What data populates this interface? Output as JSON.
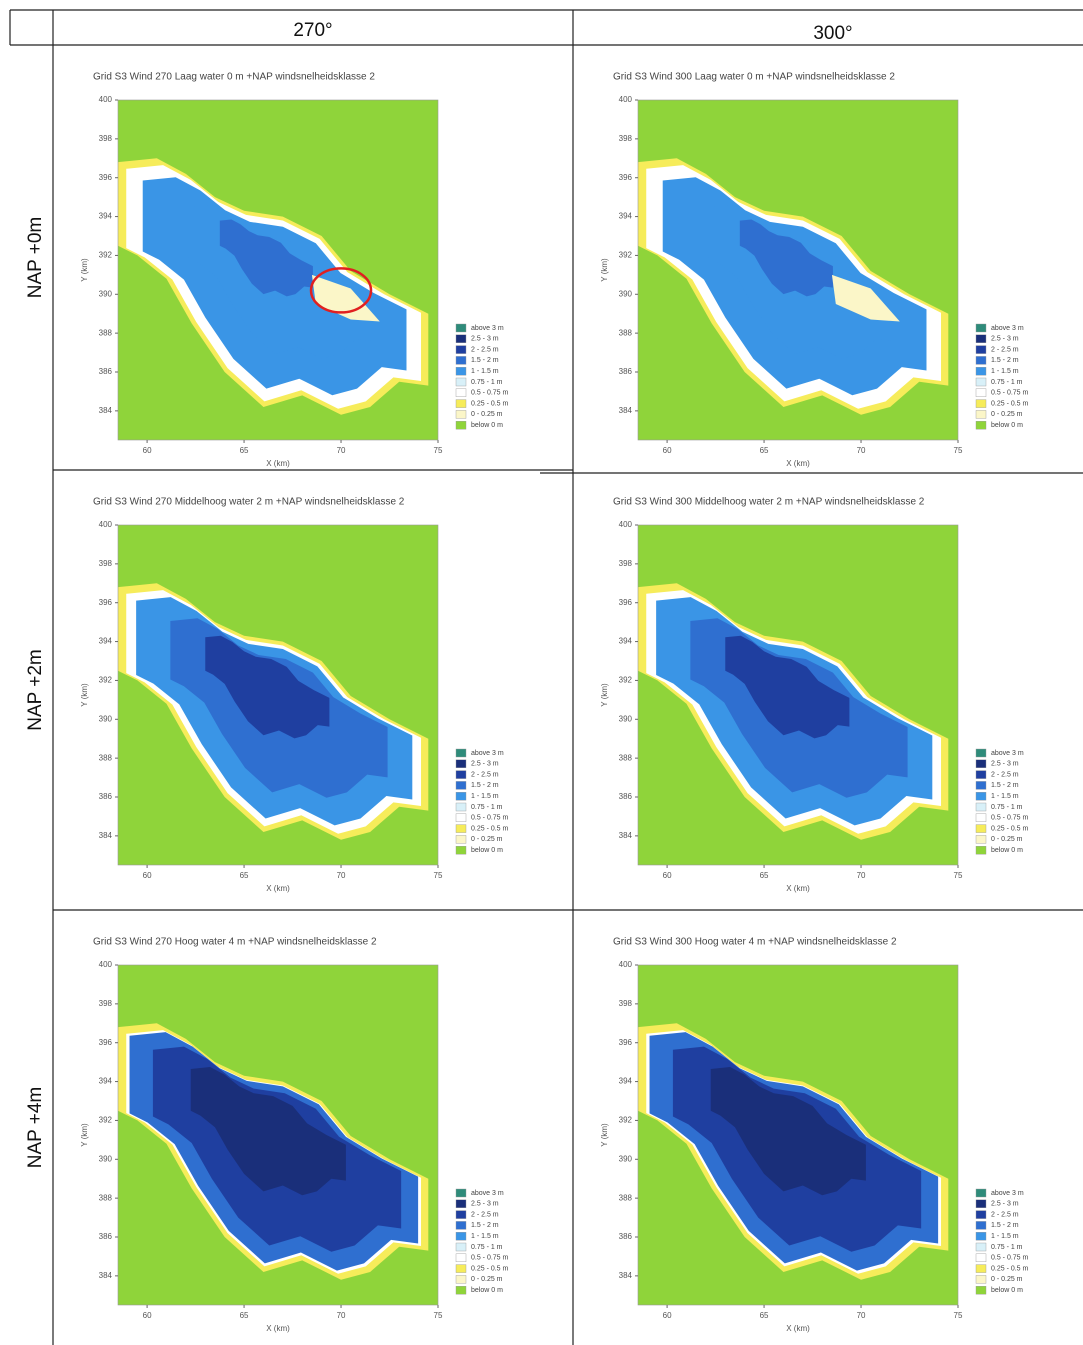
{
  "header": {
    "columns": [
      "270°",
      "300°"
    ]
  },
  "rows": [
    {
      "label": "NAP +0m",
      "panels": [
        {
          "title": "Grid  S3  Wind 270   Laag water  0 m +NAP windsnelheidsklasse 2"
        },
        {
          "title": "Grid  S3  Wind 300   Laag water  0 m +NAP windsnelheidsklasse 2"
        }
      ]
    },
    {
      "label": "NAP +2m",
      "panels": [
        {
          "title": "Grid  S3  Wind 270   Middelhoog water  2 m +NAP windsnelheidsklasse 2"
        },
        {
          "title": "Grid  S3  Wind 300   Middelhoog water  2 m +NAP windsnelheidsklasse 2"
        }
      ]
    },
    {
      "label": "NAP +4m",
      "panels": [
        {
          "title": "Grid  S3  Wind 270   Hoog water  4 m +NAP windsnelheidsklasse 2"
        },
        {
          "title": "Grid  S3  Wind 300   Hoog water  4 m +NAP windsnelheidsklasse 2"
        }
      ]
    }
  ],
  "axes": {
    "x_label": "X (km)",
    "y_label": "Y (km)",
    "xlim": [
      58.5,
      75
    ],
    "ylim": [
      382.5,
      400
    ],
    "xticks": [
      60,
      65,
      70,
      75
    ],
    "yticks": [
      400,
      398,
      396,
      394,
      392,
      390,
      388,
      386,
      384
    ]
  },
  "legend": [
    {
      "label": "above 3 m",
      "color": "#2e8b7a"
    },
    {
      "label": "2.5 - 3 m",
      "color": "#1a2f7a"
    },
    {
      "label": "2 - 2.5 m",
      "color": "#1f3fa0"
    },
    {
      "label": "1.5 - 2 m",
      "color": "#2f6fd0"
    },
    {
      "label": "1 - 1.5 m",
      "color": "#3a95e6"
    },
    {
      "label": "0.75 - 1 m",
      "color": "#d8f0f8"
    },
    {
      "label": "0.5 - 0.75 m",
      "color": "#ffffff"
    },
    {
      "label": "0.25 - 0.5 m",
      "color": "#f6ec5a"
    },
    {
      "label": "0 - 0.25 m",
      "color": "#fbf6c8"
    },
    {
      "label": "below 0 m",
      "color": "#8fd43a"
    }
  ]
}
